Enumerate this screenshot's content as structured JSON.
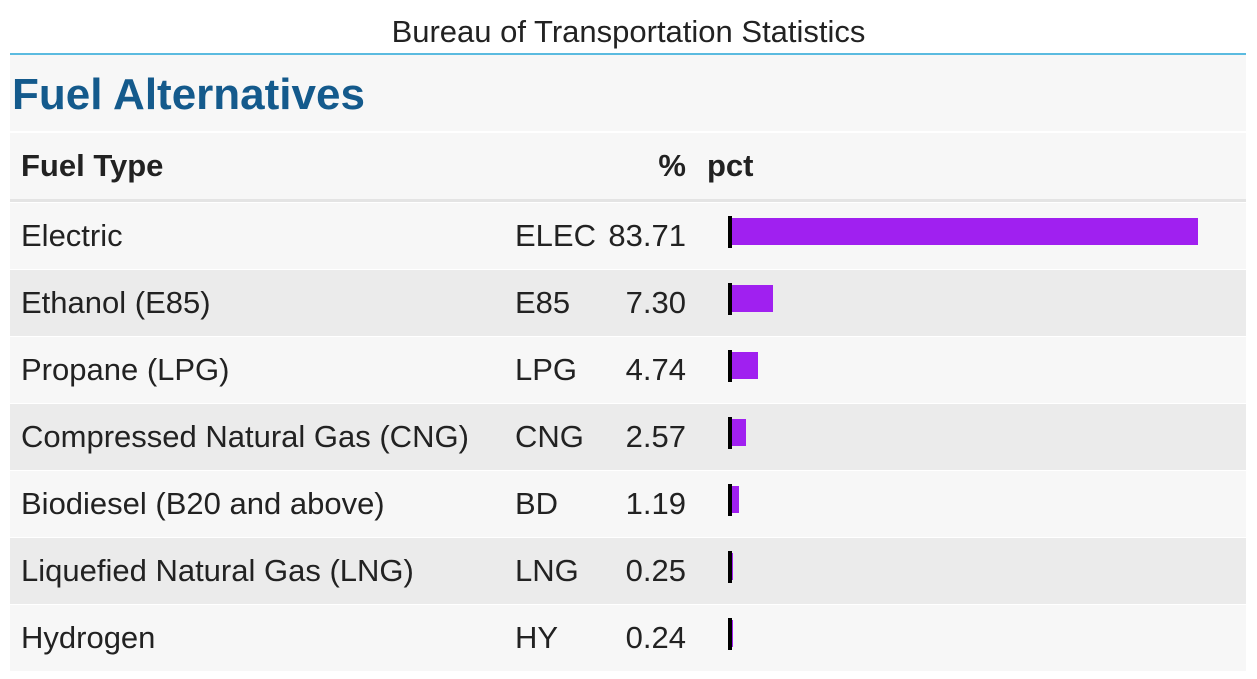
{
  "source": "Bureau of Transportation Statistics",
  "title": "Fuel Alternatives",
  "headers": {
    "fuel_type": "Fuel Type",
    "percent": "%",
    "bar": "pct"
  },
  "bar_color": "#a020f0",
  "title_color": "#145a8c",
  "chart_data": {
    "type": "table",
    "columns": [
      "Fuel Type",
      "",
      "%",
      "pct"
    ],
    "xlim": [
      0,
      84
    ],
    "rows": [
      {
        "fuel": "Electric",
        "code": "ELEC",
        "pct": 83.71,
        "pct_label": "83.71"
      },
      {
        "fuel": "Ethanol (E85)",
        "code": "E85",
        "pct": 7.3,
        "pct_label": "7.30"
      },
      {
        "fuel": "Propane (LPG)",
        "code": "LPG",
        "pct": 4.74,
        "pct_label": "4.74"
      },
      {
        "fuel": "Compressed Natural Gas (CNG)",
        "code": "CNG",
        "pct": 2.57,
        "pct_label": "2.57"
      },
      {
        "fuel": "Biodiesel (B20 and above)",
        "code": "BD",
        "pct": 1.19,
        "pct_label": "1.19"
      },
      {
        "fuel": "Liquefied Natural Gas (LNG)",
        "code": "LNG",
        "pct": 0.25,
        "pct_label": "0.25"
      },
      {
        "fuel": "Hydrogen",
        "code": "HY",
        "pct": 0.24,
        "pct_label": "0.24"
      }
    ]
  }
}
